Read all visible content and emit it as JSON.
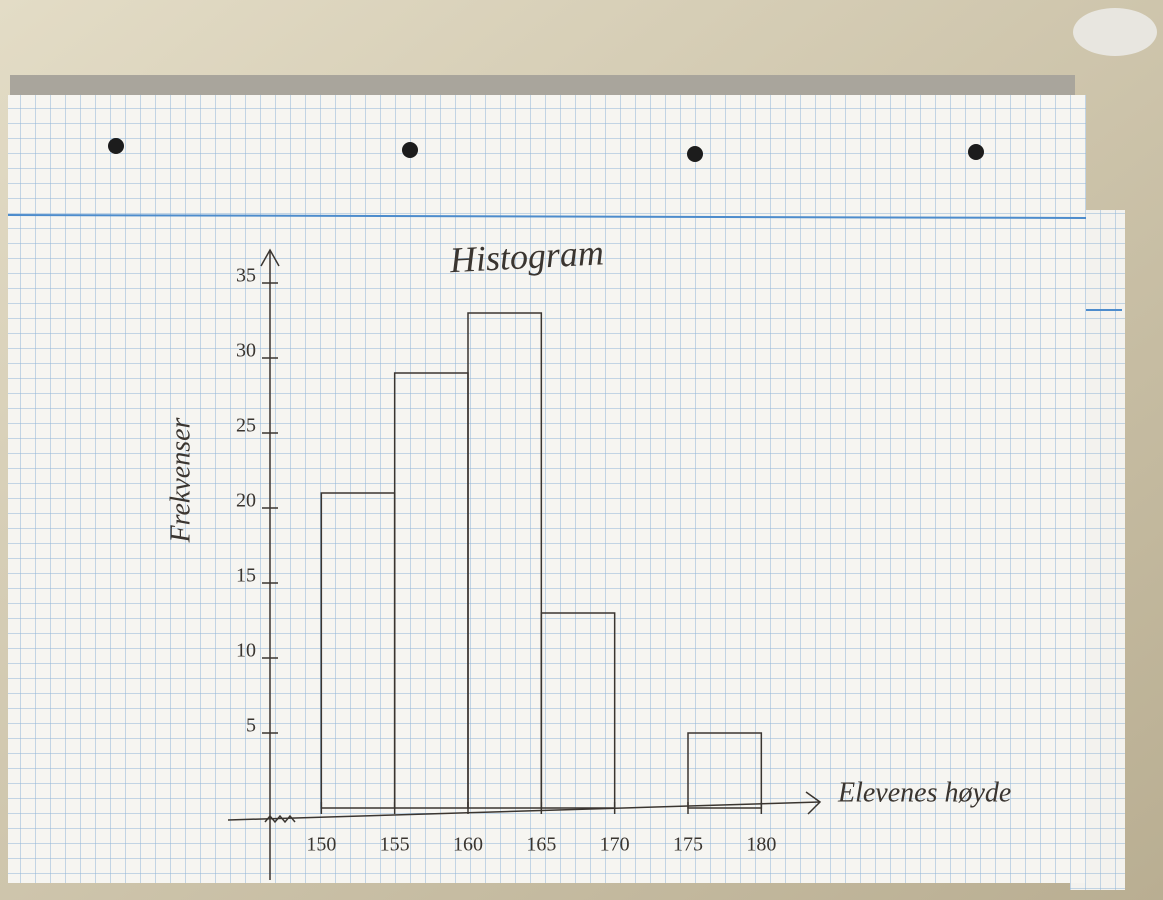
{
  "chart_data": {
    "type": "histogram",
    "title": "Histogram",
    "x_label": "Elevenes høyde",
    "y_label": "Frekvenser",
    "bins": [
      150,
      155,
      160,
      165,
      170,
      175,
      180
    ],
    "counts": [
      21,
      29,
      33,
      13,
      0,
      5
    ],
    "color": "#3a3530",
    "xlim": [
      146.5,
      184
    ],
    "ylim": [
      0,
      37.2
    ],
    "xticks": [
      150,
      155,
      160,
      165,
      170,
      175,
      180
    ],
    "yticks": [
      5,
      10,
      15,
      20,
      25,
      30,
      35
    ]
  }
}
